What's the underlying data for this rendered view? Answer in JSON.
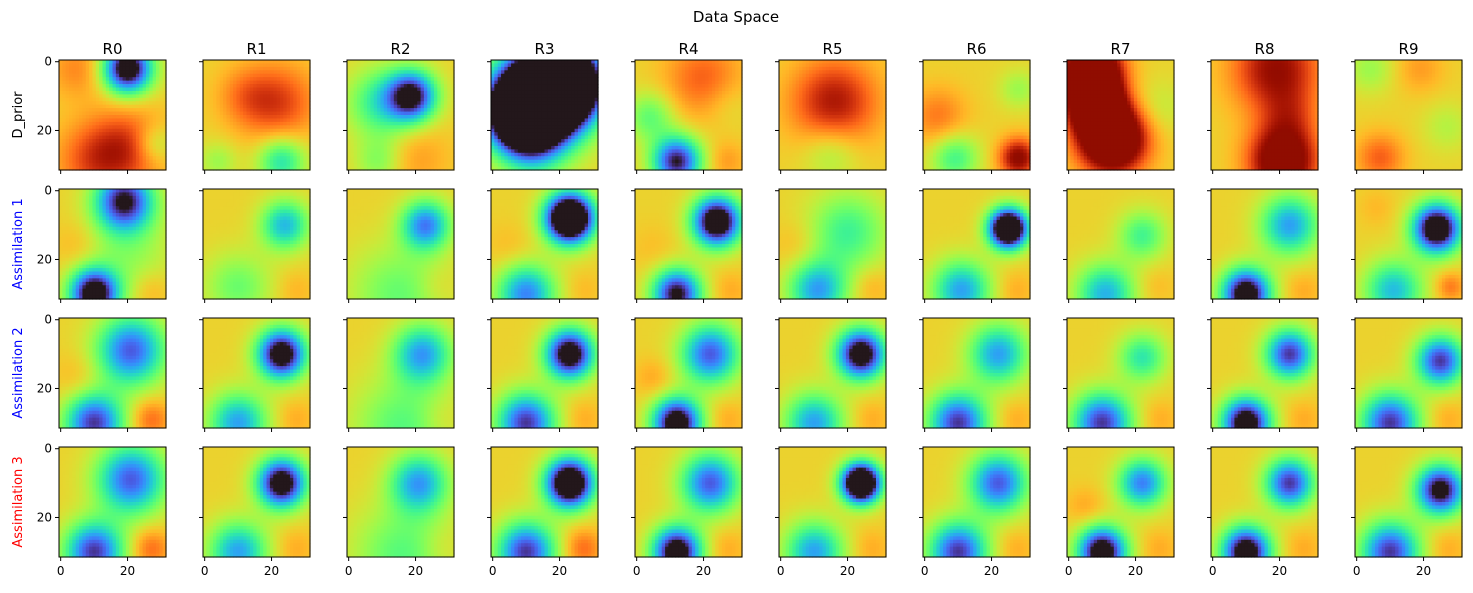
{
  "chart_data": {
    "type": "heatmap",
    "title": "Data Space",
    "colormap": "turbo",
    "columns": [
      "R0",
      "R1",
      "R2",
      "R3",
      "R4",
      "R5",
      "R6",
      "R7",
      "R8",
      "R9"
    ],
    "rows": [
      {
        "label": "D_prior",
        "color": "#000000"
      },
      {
        "label": "Assimilation 1",
        "color": "#0000ff"
      },
      {
        "label": "Assimilation 2",
        "color": "#0000ff"
      },
      {
        "label": "Assimilation 3",
        "color": "#ff0000"
      }
    ],
    "grid_size": 32,
    "x_ticks": [
      0,
      20
    ],
    "y_ticks": [
      0,
      20
    ],
    "xlim": [
      0,
      31
    ],
    "ylim": [
      31,
      0
    ],
    "value_range": [
      0,
      1
    ],
    "background_level": 0.62,
    "fields": {
      "D_prior": [
        [
          [
            5,
            2,
            0.8,
            6,
            0.3
          ],
          [
            20,
            2,
            0.05,
            5,
            0.6
          ],
          [
            20,
            25,
            0.86,
            8,
            0.4
          ],
          [
            10,
            29,
            0.9,
            8,
            0.3
          ],
          [
            28,
            24,
            0.4,
            4,
            0.3
          ]
        ],
        [
          [
            22,
            12,
            0.82,
            8,
            0.5
          ],
          [
            12,
            10,
            0.78,
            6,
            0.3
          ],
          [
            23,
            29,
            0.35,
            5,
            0.5
          ],
          [
            4,
            29,
            0.45,
            4,
            0.3
          ]
        ],
        [
          [
            19,
            10,
            0.15,
            5,
            0.6
          ],
          [
            10,
            12,
            0.3,
            7,
            0.4
          ],
          [
            20,
            28,
            0.72,
            7,
            0.4
          ],
          [
            9,
            29,
            0.35,
            5,
            0.25
          ]
        ],
        [
          [
            15,
            10,
            0.02,
            9,
            0.9
          ],
          [
            9,
            15,
            0.02,
            7,
            0.8
          ],
          [
            22,
            6,
            0.02,
            7,
            0.8
          ],
          [
            12,
            26,
            0.35,
            7,
            0.3
          ]
        ],
        [
          [
            20,
            5,
            0.82,
            8,
            0.4
          ],
          [
            4,
            16,
            0.4,
            5,
            0.4
          ],
          [
            12,
            29,
            0.15,
            5,
            0.6
          ],
          [
            27,
            29,
            0.72,
            4,
            0.4
          ],
          [
            27,
            12,
            0.5,
            5,
            0.2
          ]
        ],
        [
          [
            16,
            12,
            0.85,
            9,
            0.6
          ],
          [
            15,
            26,
            0.42,
            6,
            0.3
          ]
        ],
        [
          [
            4,
            16,
            0.78,
            6,
            0.4
          ],
          [
            9,
            28,
            0.35,
            5,
            0.4
          ],
          [
            28,
            28,
            0.9,
            4,
            0.6
          ],
          [
            28,
            8,
            0.45,
            4,
            0.3
          ]
        ],
        [
          [
            7,
            3,
            0.98,
            6,
            0.9
          ],
          [
            8,
            13,
            0.98,
            5,
            0.9
          ],
          [
            13,
            22,
            0.98,
            7,
            0.9
          ],
          [
            26,
            14,
            0.5,
            6,
            0.3
          ]
        ],
        [
          [
            19,
            2,
            0.88,
            9,
            0.6
          ],
          [
            21,
            29,
            0.95,
            7,
            0.7
          ],
          [
            23,
            16,
            0.82,
            6,
            0.3
          ]
        ],
        [
          [
            4,
            2,
            0.45,
            5,
            0.3
          ],
          [
            19,
            2,
            0.72,
            5,
            0.4
          ],
          [
            7,
            28,
            0.82,
            5,
            0.4
          ],
          [
            27,
            19,
            0.5,
            5,
            0.3
          ]
        ]
      ],
      "Assimilation 1": [
        [
          [
            19,
            3,
            0.1,
            6,
            0.55
          ],
          [
            10,
            30,
            0.05,
            5,
            0.6
          ],
          [
            20,
            18,
            0.4,
            9,
            0.25
          ],
          [
            5,
            16,
            0.72,
            5,
            0.25
          ],
          [
            27,
            29,
            0.72,
            4,
            0.3
          ]
        ],
        [
          [
            24,
            10,
            0.28,
            5,
            0.5
          ],
          [
            10,
            28,
            0.35,
            7,
            0.3
          ],
          [
            27,
            29,
            0.7,
            4,
            0.3
          ]
        ],
        [
          [
            23,
            10,
            0.2,
            5,
            0.5
          ],
          [
            15,
            30,
            0.2,
            10,
            0.2
          ],
          [
            26,
            28,
            0.7,
            4,
            0.25
          ]
        ],
        [
          [
            23,
            8,
            0.02,
            5,
            0.8
          ],
          [
            10,
            30,
            0.1,
            6,
            0.4
          ],
          [
            5,
            17,
            0.72,
            5,
            0.2
          ],
          [
            27,
            29,
            0.7,
            4,
            0.25
          ]
        ],
        [
          [
            24,
            9,
            0.1,
            5,
            0.7
          ],
          [
            12,
            30,
            0.08,
            5,
            0.55
          ],
          [
            5,
            17,
            0.7,
            5,
            0.2
          ],
          [
            28,
            29,
            0.72,
            4,
            0.3
          ]
        ],
        [
          [
            20,
            12,
            0.3,
            8,
            0.35
          ],
          [
            11,
            29,
            0.15,
            6,
            0.4
          ],
          [
            5,
            16,
            0.72,
            5,
            0.25
          ],
          [
            27,
            28,
            0.72,
            4,
            0.3
          ]
        ],
        [
          [
            25,
            11,
            0.05,
            4,
            0.8
          ],
          [
            11,
            29,
            0.15,
            6,
            0.4
          ],
          [
            27,
            29,
            0.72,
            4,
            0.3
          ]
        ],
        [
          [
            22,
            13,
            0.35,
            5,
            0.4
          ],
          [
            11,
            30,
            0.18,
            6,
            0.4
          ],
          [
            26,
            28,
            0.7,
            4,
            0.25
          ]
        ],
        [
          [
            23,
            10,
            0.2,
            6,
            0.45
          ],
          [
            10,
            30,
            0.05,
            5,
            0.6
          ],
          [
            27,
            29,
            0.72,
            4,
            0.3
          ]
        ],
        [
          [
            24,
            11,
            0.1,
            5,
            0.7
          ],
          [
            11,
            29,
            0.2,
            6,
            0.4
          ],
          [
            28,
            28,
            0.78,
            3,
            0.4
          ],
          [
            6,
            5,
            0.7,
            4,
            0.25
          ]
        ]
      ],
      "Assimilation 2": [
        [
          [
            21,
            9,
            0.15,
            7,
            0.5
          ],
          [
            10,
            30,
            0.1,
            6,
            0.5
          ],
          [
            5,
            17,
            0.72,
            5,
            0.25
          ],
          [
            27,
            29,
            0.8,
            4,
            0.4
          ]
        ],
        [
          [
            23,
            10,
            0.1,
            5,
            0.65
          ],
          [
            10,
            30,
            0.15,
            6,
            0.4
          ],
          [
            27,
            29,
            0.72,
            4,
            0.3
          ]
        ],
        [
          [
            22,
            10,
            0.2,
            6,
            0.45
          ],
          [
            16,
            31,
            0.15,
            10,
            0.2
          ],
          [
            27,
            29,
            0.7,
            4,
            0.25
          ]
        ],
        [
          [
            23,
            10,
            0.1,
            5,
            0.65
          ],
          [
            10,
            30,
            0.1,
            6,
            0.5
          ],
          [
            27,
            29,
            0.72,
            4,
            0.3
          ]
        ],
        [
          [
            22,
            10,
            0.15,
            6,
            0.5
          ],
          [
            12,
            30,
            0.05,
            5,
            0.6
          ],
          [
            5,
            17,
            0.75,
            4,
            0.25
          ],
          [
            27,
            29,
            0.72,
            4,
            0.3
          ]
        ],
        [
          [
            24,
            10,
            0.1,
            5,
            0.65
          ],
          [
            10,
            30,
            0.15,
            6,
            0.4
          ],
          [
            27,
            29,
            0.72,
            4,
            0.3
          ]
        ],
        [
          [
            22,
            10,
            0.2,
            6,
            0.45
          ],
          [
            10,
            30,
            0.1,
            6,
            0.5
          ],
          [
            27,
            29,
            0.72,
            4,
            0.3
          ]
        ],
        [
          [
            22,
            11,
            0.3,
            5,
            0.4
          ],
          [
            10,
            30,
            0.1,
            6,
            0.5
          ],
          [
            27,
            29,
            0.72,
            4,
            0.3
          ]
        ],
        [
          [
            23,
            10,
            0.15,
            5,
            0.55
          ],
          [
            10,
            30,
            0.05,
            5,
            0.6
          ],
          [
            27,
            29,
            0.72,
            4,
            0.3
          ]
        ],
        [
          [
            25,
            12,
            0.15,
            5,
            0.55
          ],
          [
            10,
            30,
            0.1,
            6,
            0.5
          ],
          [
            27,
            29,
            0.72,
            4,
            0.3
          ]
        ]
      ],
      "Assimilation 3": [
        [
          [
            21,
            9,
            0.15,
            7,
            0.5
          ],
          [
            10,
            30,
            0.1,
            6,
            0.5
          ],
          [
            27,
            29,
            0.8,
            4,
            0.4
          ]
        ],
        [
          [
            23,
            10,
            0.1,
            5,
            0.65
          ],
          [
            10,
            30,
            0.15,
            6,
            0.4
          ],
          [
            27,
            29,
            0.72,
            4,
            0.3
          ]
        ],
        [
          [
            21,
            10,
            0.2,
            6,
            0.45
          ],
          [
            16,
            31,
            0.15,
            10,
            0.2
          ],
          [
            27,
            29,
            0.7,
            4,
            0.25
          ]
        ],
        [
          [
            23,
            10,
            0.05,
            5,
            0.7
          ],
          [
            10,
            30,
            0.1,
            6,
            0.5
          ],
          [
            27,
            29,
            0.8,
            4,
            0.4
          ]
        ],
        [
          [
            22,
            10,
            0.15,
            6,
            0.5
          ],
          [
            12,
            30,
            0.05,
            5,
            0.6
          ],
          [
            27,
            29,
            0.72,
            4,
            0.3
          ]
        ],
        [
          [
            24,
            10,
            0.03,
            4,
            0.8
          ],
          [
            10,
            30,
            0.15,
            6,
            0.4
          ],
          [
            27,
            29,
            0.72,
            4,
            0.3
          ]
        ],
        [
          [
            22,
            10,
            0.15,
            6,
            0.5
          ],
          [
            10,
            30,
            0.1,
            6,
            0.5
          ],
          [
            27,
            29,
            0.72,
            4,
            0.3
          ]
        ],
        [
          [
            22,
            10,
            0.2,
            5,
            0.5
          ],
          [
            10,
            30,
            0.05,
            5,
            0.6
          ],
          [
            5,
            17,
            0.75,
            4,
            0.25
          ],
          [
            27,
            29,
            0.72,
            4,
            0.3
          ]
        ],
        [
          [
            23,
            10,
            0.15,
            5,
            0.55
          ],
          [
            10,
            30,
            0.05,
            5,
            0.6
          ],
          [
            27,
            29,
            0.72,
            4,
            0.3
          ]
        ],
        [
          [
            25,
            12,
            0.1,
            5,
            0.6
          ],
          [
            10,
            30,
            0.1,
            6,
            0.5
          ],
          [
            27,
            29,
            0.72,
            4,
            0.3
          ]
        ]
      ]
    }
  }
}
